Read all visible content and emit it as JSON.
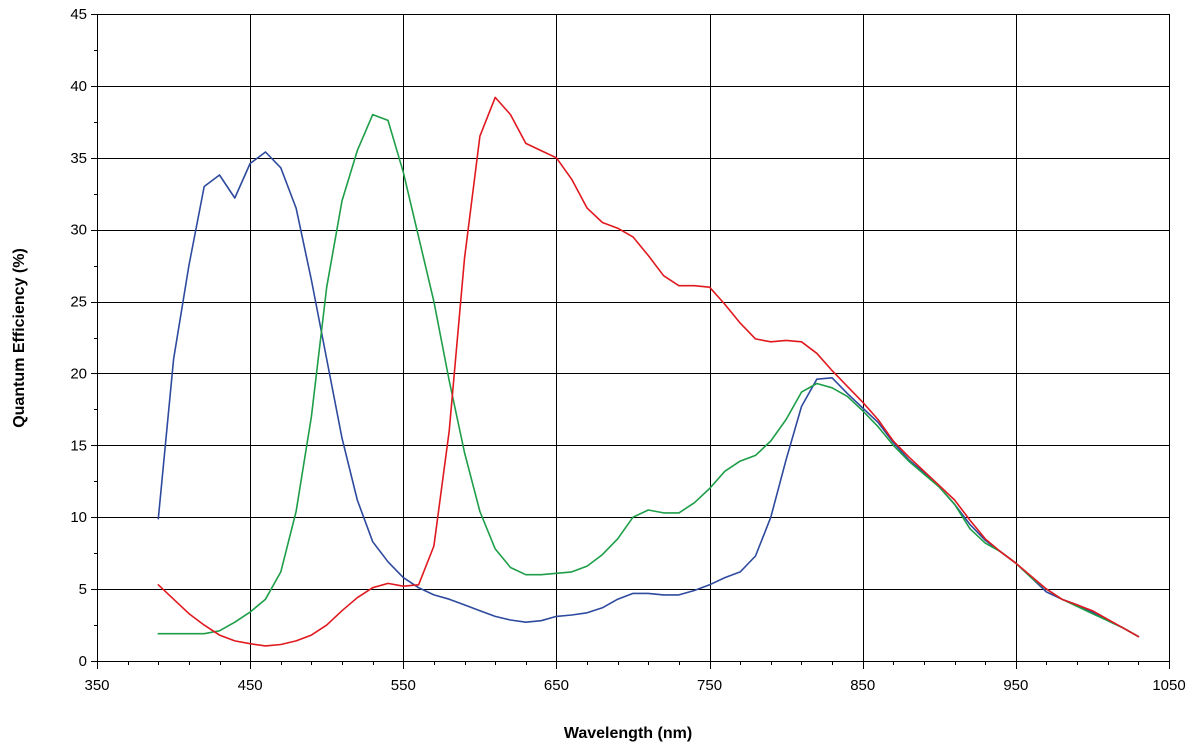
{
  "chart_data": {
    "type": "line",
    "title": "",
    "xlabel": "Wavelength (nm)",
    "ylabel": "Quantum Efficiency (%)",
    "xlim": [
      350,
      1050
    ],
    "ylim": [
      0,
      45
    ],
    "x_ticks": [
      350,
      450,
      550,
      650,
      750,
      850,
      950,
      1050
    ],
    "y_ticks": [
      0,
      5,
      10,
      15,
      20,
      25,
      30,
      35,
      40,
      45
    ],
    "grid": true,
    "legend": "none",
    "series": [
      {
        "color": "#2E4A9E",
        "points": [
          [
            390,
            9.9
          ],
          [
            400,
            21
          ],
          [
            410,
            27.5
          ],
          [
            420,
            33
          ],
          [
            430,
            33.8
          ],
          [
            440,
            32.2
          ],
          [
            450,
            34.6
          ],
          [
            460,
            35.4
          ],
          [
            470,
            34.3
          ],
          [
            480,
            31.5
          ],
          [
            490,
            26.5
          ],
          [
            500,
            21
          ],
          [
            510,
            15.5
          ],
          [
            520,
            11.2
          ],
          [
            530,
            8.3
          ],
          [
            540,
            6.9
          ],
          [
            550,
            5.8
          ],
          [
            560,
            5.1
          ],
          [
            570,
            4.6
          ],
          [
            580,
            4.3
          ],
          [
            590,
            3.9
          ],
          [
            600,
            3.5
          ],
          [
            610,
            3.1
          ],
          [
            620,
            2.85
          ],
          [
            630,
            2.7
          ],
          [
            640,
            2.8
          ],
          [
            650,
            3.1
          ],
          [
            660,
            3.2
          ],
          [
            670,
            3.35
          ],
          [
            680,
            3.7
          ],
          [
            690,
            4.3
          ],
          [
            700,
            4.7
          ],
          [
            710,
            4.7
          ],
          [
            720,
            4.6
          ],
          [
            730,
            4.6
          ],
          [
            740,
            4.9
          ],
          [
            750,
            5.3
          ],
          [
            760,
            5.8
          ],
          [
            770,
            6.2
          ],
          [
            780,
            7.3
          ],
          [
            790,
            10
          ],
          [
            800,
            14
          ],
          [
            810,
            17.7
          ],
          [
            820,
            19.6
          ],
          [
            830,
            19.7
          ],
          [
            840,
            18.6
          ],
          [
            850,
            17.6
          ],
          [
            860,
            16.6
          ],
          [
            870,
            15.2
          ],
          [
            880,
            14
          ],
          [
            890,
            13.1
          ],
          [
            900,
            12.1
          ],
          [
            910,
            10.9
          ],
          [
            920,
            9.5
          ],
          [
            930,
            8.4
          ],
          [
            940,
            7.6
          ],
          [
            950,
            6.8
          ],
          [
            960,
            5.8
          ],
          [
            970,
            4.8
          ],
          [
            980,
            4.3
          ],
          [
            990,
            3.9
          ],
          [
            1000,
            3.4
          ],
          [
            1010,
            2.8
          ],
          [
            1020,
            2.3
          ],
          [
            1030,
            1.7
          ]
        ]
      },
      {
        "color": "#1E9E48",
        "points": [
          [
            390,
            1.9
          ],
          [
            400,
            1.9
          ],
          [
            410,
            1.9
          ],
          [
            420,
            1.9
          ],
          [
            430,
            2.1
          ],
          [
            440,
            2.7
          ],
          [
            450,
            3.4
          ],
          [
            460,
            4.3
          ],
          [
            470,
            6.2
          ],
          [
            480,
            10.4
          ],
          [
            490,
            17
          ],
          [
            500,
            26
          ],
          [
            510,
            32
          ],
          [
            520,
            35.5
          ],
          [
            530,
            38
          ],
          [
            540,
            37.6
          ],
          [
            550,
            34
          ],
          [
            560,
            29.5
          ],
          [
            570,
            25
          ],
          [
            580,
            19.5
          ],
          [
            590,
            14.5
          ],
          [
            600,
            10.4
          ],
          [
            610,
            7.8
          ],
          [
            620,
            6.5
          ],
          [
            630,
            6
          ],
          [
            640,
            6
          ],
          [
            650,
            6.1
          ],
          [
            660,
            6.2
          ],
          [
            670,
            6.6
          ],
          [
            680,
            7.4
          ],
          [
            690,
            8.5
          ],
          [
            700,
            10
          ],
          [
            710,
            10.5
          ],
          [
            720,
            10.3
          ],
          [
            730,
            10.3
          ],
          [
            740,
            11
          ],
          [
            750,
            12
          ],
          [
            760,
            13.2
          ],
          [
            770,
            13.9
          ],
          [
            780,
            14.3
          ],
          [
            790,
            15.3
          ],
          [
            800,
            16.8
          ],
          [
            810,
            18.7
          ],
          [
            820,
            19.3
          ],
          [
            830,
            19
          ],
          [
            840,
            18.4
          ],
          [
            850,
            17.4
          ],
          [
            860,
            16.3
          ],
          [
            870,
            15
          ],
          [
            880,
            13.9
          ],
          [
            890,
            13
          ],
          [
            900,
            12.1
          ],
          [
            910,
            10.9
          ],
          [
            920,
            9.2
          ],
          [
            930,
            8.2
          ],
          [
            940,
            7.6
          ],
          [
            950,
            6.8
          ],
          [
            960,
            5.8
          ],
          [
            970,
            5
          ],
          [
            980,
            4.3
          ],
          [
            990,
            3.8
          ],
          [
            1000,
            3.3
          ],
          [
            1010,
            2.8
          ],
          [
            1020,
            2.3
          ],
          [
            1030,
            1.7
          ]
        ]
      },
      {
        "color": "#E0191F",
        "points": [
          [
            390,
            5.3
          ],
          [
            400,
            4.3
          ],
          [
            410,
            3.3
          ],
          [
            420,
            2.5
          ],
          [
            430,
            1.8
          ],
          [
            440,
            1.4
          ],
          [
            450,
            1.2
          ],
          [
            460,
            1.05
          ],
          [
            470,
            1.15
          ],
          [
            480,
            1.4
          ],
          [
            490,
            1.8
          ],
          [
            500,
            2.5
          ],
          [
            510,
            3.5
          ],
          [
            520,
            4.4
          ],
          [
            530,
            5.1
          ],
          [
            540,
            5.4
          ],
          [
            550,
            5.2
          ],
          [
            560,
            5.3
          ],
          [
            570,
            8
          ],
          [
            580,
            16
          ],
          [
            590,
            28
          ],
          [
            600,
            36.5
          ],
          [
            610,
            39.2
          ],
          [
            620,
            38
          ],
          [
            630,
            36
          ],
          [
            640,
            35.5
          ],
          [
            650,
            35
          ],
          [
            660,
            33.5
          ],
          [
            670,
            31.5
          ],
          [
            680,
            30.5
          ],
          [
            690,
            30.1
          ],
          [
            700,
            29.5
          ],
          [
            710,
            28.2
          ],
          [
            720,
            26.8
          ],
          [
            730,
            26.1
          ],
          [
            740,
            26.1
          ],
          [
            750,
            26
          ],
          [
            760,
            24.8
          ],
          [
            770,
            23.5
          ],
          [
            780,
            22.4
          ],
          [
            790,
            22.2
          ],
          [
            800,
            22.3
          ],
          [
            810,
            22.2
          ],
          [
            820,
            21.4
          ],
          [
            830,
            20.2
          ],
          [
            840,
            19.1
          ],
          [
            850,
            18
          ],
          [
            860,
            16.8
          ],
          [
            870,
            15.3
          ],
          [
            880,
            14.2
          ],
          [
            890,
            13.2
          ],
          [
            900,
            12.2
          ],
          [
            910,
            11.2
          ],
          [
            920,
            9.8
          ],
          [
            930,
            8.5
          ],
          [
            940,
            7.6
          ],
          [
            950,
            6.8
          ],
          [
            960,
            5.9
          ],
          [
            970,
            5
          ],
          [
            980,
            4.3
          ],
          [
            990,
            3.9
          ],
          [
            1000,
            3.5
          ],
          [
            1010,
            2.9
          ],
          [
            1020,
            2.3
          ],
          [
            1030,
            1.7
          ]
        ]
      }
    ]
  }
}
